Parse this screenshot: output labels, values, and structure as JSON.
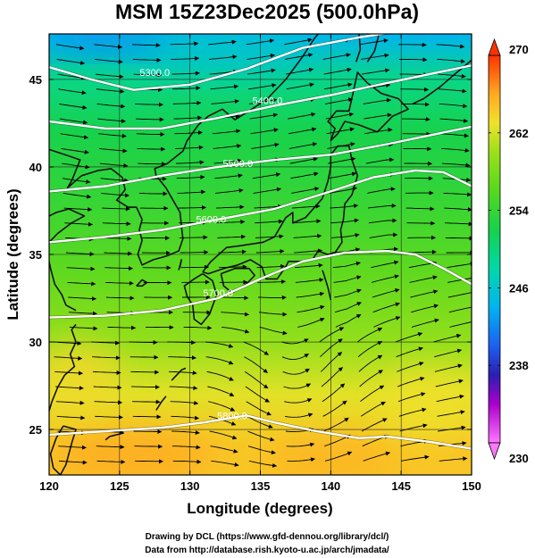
{
  "title": "MSM 15Z23Dec2025 (500.0hPa)",
  "colors": {
    "contour": "#ffffff",
    "coast": "#111111",
    "arrow": "#000000",
    "grid": "#222222"
  },
  "map": {
    "lon_range": [
      120,
      150
    ],
    "lat_range": [
      22.4,
      47.6
    ],
    "x_axis": {
      "label": "Longitude (degrees)",
      "ticks": [
        {
          "value": 120,
          "label": "120"
        },
        {
          "value": 125,
          "label": "125"
        },
        {
          "value": 130,
          "label": "130"
        },
        {
          "value": 135,
          "label": "135"
        },
        {
          "value": 140,
          "label": "140"
        },
        {
          "value": 145,
          "label": "145"
        },
        {
          "value": 150,
          "label": "150"
        }
      ]
    },
    "y_axis": {
      "label": "Latitude  (degrees)",
      "ticks": [
        {
          "value": 25,
          "label": "25"
        },
        {
          "value": 30,
          "label": "30"
        },
        {
          "value": 35,
          "label": "35"
        },
        {
          "value": 40,
          "label": "40"
        },
        {
          "value": 45,
          "label": "45"
        }
      ]
    },
    "grid": true
  },
  "colorbar": {
    "min": 230,
    "max": 270,
    "ticks": [
      {
        "value": 230,
        "label": "230"
      },
      {
        "value": 238,
        "label": "238"
      },
      {
        "value": 246,
        "label": "246"
      },
      {
        "value": 254,
        "label": "254"
      },
      {
        "value": 262,
        "label": "262"
      },
      {
        "value": 270,
        "label": "270"
      }
    ],
    "stops": [
      {
        "value": 230,
        "color": "#ff77ff"
      },
      {
        "value": 234,
        "color": "#aa00cc"
      },
      {
        "value": 237,
        "color": "#2b1fb0"
      },
      {
        "value": 240,
        "color": "#1e5ff0"
      },
      {
        "value": 244,
        "color": "#00b4f0"
      },
      {
        "value": 248,
        "color": "#00d8a8"
      },
      {
        "value": 252,
        "color": "#17d24c"
      },
      {
        "value": 256,
        "color": "#56d81e"
      },
      {
        "value": 260,
        "color": "#9ce01a"
      },
      {
        "value": 263,
        "color": "#f0e12a"
      },
      {
        "value": 266,
        "color": "#ffaa22"
      },
      {
        "value": 270,
        "color": "#ff3300"
      }
    ]
  },
  "field": {
    "temperature_profile": [
      {
        "lat": 24,
        "t": 264.5
      },
      {
        "lat": 27,
        "t": 262.5
      },
      {
        "lat": 30,
        "t": 259.5
      },
      {
        "lat": 34,
        "t": 256.5
      },
      {
        "lat": 38,
        "t": 254.0
      },
      {
        "lat": 42,
        "t": 252.0
      },
      {
        "lat": 45,
        "t": 249.5
      },
      {
        "lat": 47.6,
        "t": 244.0
      }
    ]
  },
  "contours": [
    {
      "label": "5300.0",
      "label_lon": 127.5,
      "label_lat": 45.2,
      "points": [
        [
          120,
          45.7
        ],
        [
          123,
          45.0
        ],
        [
          126,
          44.4
        ],
        [
          130,
          44.7
        ],
        [
          134,
          45.6
        ],
        [
          138,
          46.8
        ],
        [
          142,
          47.4
        ],
        [
          146,
          47.9
        ],
        [
          150,
          48.4
        ]
      ]
    },
    {
      "label": "5400.0",
      "label_lon": 135.5,
      "label_lat": 43.6,
      "points": [
        [
          120,
          42.6
        ],
        [
          124,
          42.2
        ],
        [
          128,
          42.2
        ],
        [
          132,
          42.8
        ],
        [
          136,
          43.5
        ],
        [
          140,
          44.1
        ],
        [
          144,
          44.8
        ],
        [
          147,
          45.3
        ],
        [
          150,
          45.8
        ]
      ]
    },
    {
      "label": "5500.0",
      "label_lon": 133.4,
      "label_lat": 40.0,
      "points": [
        [
          120,
          38.6
        ],
        [
          124,
          38.9
        ],
        [
          128,
          39.5
        ],
        [
          132,
          40.0
        ],
        [
          136,
          40.4
        ],
        [
          140,
          40.7
        ],
        [
          144,
          41.3
        ],
        [
          147,
          41.8
        ],
        [
          150,
          42.3
        ]
      ]
    },
    {
      "label": "5600.0",
      "label_lon": 131.5,
      "label_lat": 36.8,
      "points": [
        [
          120,
          35.7
        ],
        [
          124,
          36.0
        ],
        [
          128,
          36.4
        ],
        [
          132,
          37.0
        ],
        [
          136,
          37.6
        ],
        [
          140,
          38.6
        ],
        [
          143,
          39.4
        ],
        [
          146,
          39.8
        ],
        [
          148,
          39.7
        ],
        [
          150,
          38.9
        ]
      ]
    },
    {
      "label": "5700.0",
      "label_lon": 132.0,
      "label_lat": 32.6,
      "points": [
        [
          120,
          31.4
        ],
        [
          124,
          31.5
        ],
        [
          128,
          31.8
        ],
        [
          132,
          32.5
        ],
        [
          135,
          33.6
        ],
        [
          138,
          34.6
        ],
        [
          141,
          35.1
        ],
        [
          144,
          35.2
        ],
        [
          146,
          35.0
        ],
        [
          148,
          34.2
        ],
        [
          150,
          33.3
        ]
      ]
    },
    {
      "label": "5800.0",
      "label_lon": 133.0,
      "label_lat": 25.6,
      "points": [
        [
          120,
          24.7
        ],
        [
          124,
          24.9
        ],
        [
          128,
          25.1
        ],
        [
          131,
          25.4
        ],
        [
          134,
          25.8
        ],
        [
          136,
          25.4
        ],
        [
          139,
          24.9
        ],
        [
          142,
          24.5
        ],
        [
          144,
          24.6
        ],
        [
          147,
          24.3
        ],
        [
          150,
          23.9
        ]
      ]
    }
  ],
  "credits": [
    "Drawing by DCL (https://www.gfd-dennou.org/library/dcl/)",
    "Data from http://database.rish.kyoto-u.ac.jp/arch/jmadata/"
  ]
}
